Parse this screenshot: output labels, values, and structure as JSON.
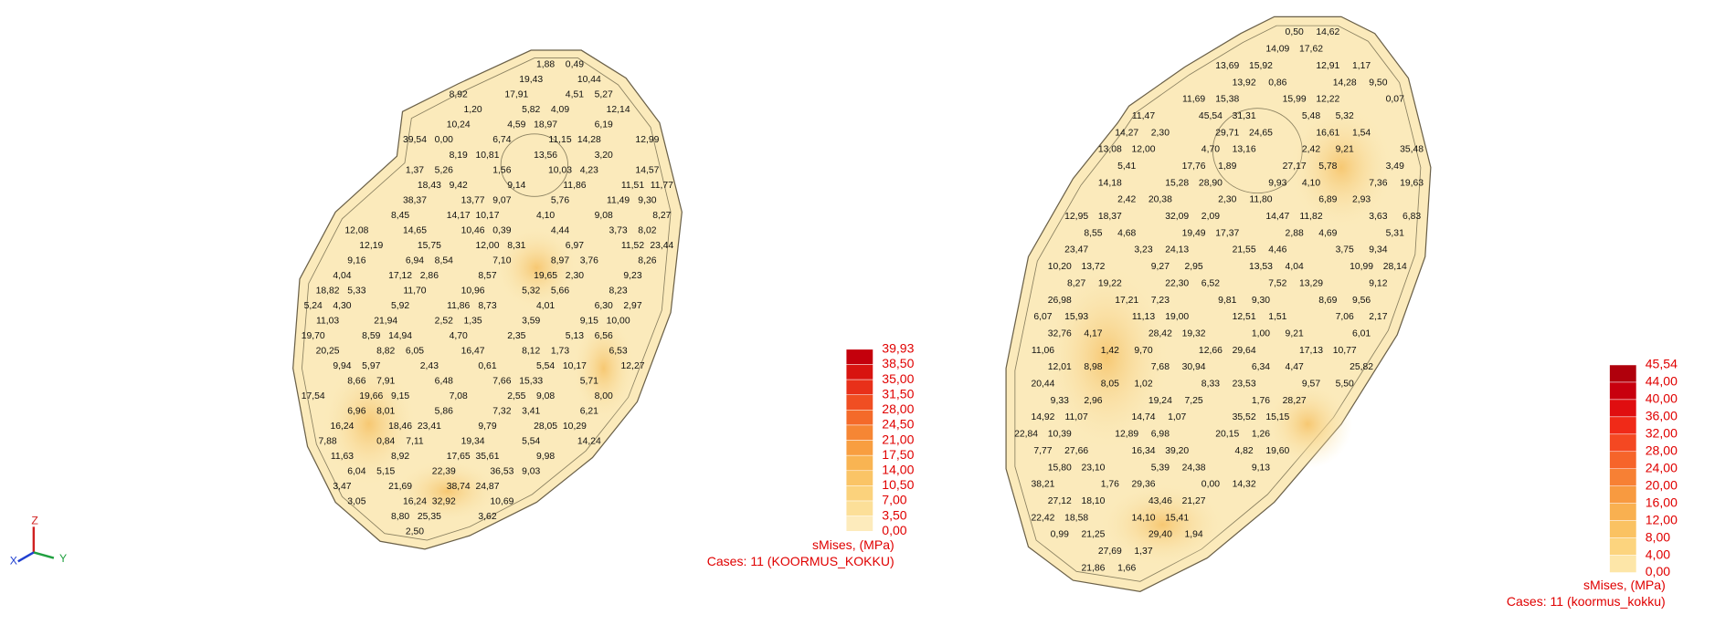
{
  "left_plot": {
    "legend": {
      "ticks": [
        "39,93",
        "38,50",
        "35,00",
        "31,50",
        "28,00",
        "24,50",
        "21,00",
        "17,50",
        "14,00",
        "10,50",
        "7,00",
        "3,50",
        "0,00"
      ],
      "colors": [
        "#c4000c",
        "#d81410",
        "#e8301a",
        "#f04e22",
        "#f46a2a",
        "#f68634",
        "#f89e40",
        "#f9b452",
        "#fac466",
        "#fbd27c",
        "#fcdf98",
        "#fdebbc"
      ],
      "quantity": "sMises, (MPa)",
      "case": "Cases: 11 (KOORMUS_KOKKU)"
    },
    "labels": [
      "1,88",
      "0,49",
      "19,43",
      "10,44",
      "8,92",
      "17,91",
      "4,51",
      "5,27",
      "1,20",
      "5,82",
      "4,09",
      "12,14",
      "10,24",
      "4,59",
      "18,97",
      "6,19",
      "39,54",
      "0,00",
      "6,74",
      "11,15",
      "14,28",
      "12,99",
      "8,19",
      "10,81",
      "13,56",
      "3,20",
      "1,37",
      "5,26",
      "1,56",
      "10,03",
      "4,23",
      "14,57",
      "18,43",
      "9,42",
      "9,14",
      "11,86",
      "11,51",
      "11,77",
      "38,37",
      "13,77",
      "9,07",
      "5,76",
      "11,49",
      "9,30",
      "8,45",
      "14,17",
      "10,17",
      "4,10",
      "9,08",
      "8,27",
      "12,08",
      "14,65",
      "10,46",
      "0,39",
      "4,44",
      "3,73",
      "8,02",
      "12,19",
      "15,75",
      "12,00",
      "8,31",
      "6,97",
      "11,52",
      "23,44",
      "9,16",
      "6,94",
      "8,54",
      "7,10",
      "8,97",
      "3,76",
      "8,26",
      "4,04",
      "17,12",
      "2,86",
      "8,57",
      "19,65",
      "2,30",
      "9,23",
      "18,82",
      "5,33",
      "11,70",
      "10,96",
      "5,32",
      "5,66",
      "8,23",
      "5,24",
      "4,30",
      "5,92",
      "11,86",
      "8,73",
      "4,01",
      "6,30",
      "2,97",
      "11,03",
      "21,94",
      "2,52",
      "1,35",
      "3,59",
      "9,15",
      "10,00",
      "19,70",
      "8,59",
      "14,94",
      "4,70",
      "2,35",
      "5,13",
      "6,56",
      "20,25",
      "8,82",
      "6,05",
      "16,47",
      "8,12",
      "1,73",
      "6,53",
      "9,94",
      "5,97",
      "2,43",
      "0,61",
      "5,54",
      "10,17",
      "12,27",
      "8,66",
      "7,91",
      "6,48",
      "7,66",
      "15,33",
      "5,71",
      "17,54",
      "19,66",
      "9,15",
      "7,08",
      "2,55",
      "9,08",
      "8,00",
      "6,96",
      "8,01",
      "5,86",
      "7,32",
      "3,41",
      "6,21",
      "16,24",
      "18,46",
      "23,41",
      "9,79",
      "28,05",
      "10,29",
      "7,88",
      "0,84",
      "7,11",
      "19,34",
      "5,54",
      "14,24",
      "11,63",
      "8,92",
      "17,65",
      "35,61",
      "9,98",
      "6,04",
      "5,15",
      "22,39",
      "36,53",
      "9,03",
      "3,47",
      "21,69",
      "38,74",
      "24,87",
      "3,05",
      "16,24",
      "32,92",
      "10,69",
      "8,80",
      "25,35",
      "3,62",
      "2,50"
    ]
  },
  "right_plot": {
    "legend": {
      "ticks": [
        "45,54",
        "44,00",
        "40,00",
        "36,00",
        "32,00",
        "28,00",
        "24,00",
        "20,00",
        "16,00",
        "12,00",
        "8,00",
        "4,00",
        "0,00"
      ],
      "colors": [
        "#b0000c",
        "#c8000e",
        "#e00e10",
        "#f02a18",
        "#f44822",
        "#f6642a",
        "#f78034",
        "#f89a40",
        "#f9b050",
        "#fac262",
        "#fcd47e",
        "#fde6a8"
      ],
      "quantity": "sMises, (MPa)",
      "case": "Cases: 11 (koormus_kokku)"
    },
    "labels": [
      "0,50",
      "14,62",
      "14,09",
      "17,62",
      "13,69",
      "15,92",
      "12,91",
      "1,17",
      "13,92",
      "0,86",
      "14,28",
      "9,50",
      "11,69",
      "15,38",
      "15,99",
      "12,22",
      "0,07",
      "11,47",
      "45,54",
      "31,31",
      "5,48",
      "5,32",
      "14,27",
      "2,30",
      "29,71",
      "24,65",
      "16,61",
      "1,54",
      "13,08",
      "12,00",
      "4,70",
      "13,16",
      "2,42",
      "9,21",
      "35,48",
      "5,41",
      "17,76",
      "1,89",
      "27,17",
      "5,78",
      "3,49",
      "14,18",
      "15,28",
      "28,90",
      "9,93",
      "4,10",
      "7,36",
      "19,63",
      "2,42",
      "20,38",
      "2,30",
      "11,80",
      "6,89",
      "2,93",
      "12,95",
      "18,37",
      "32,09",
      "2,09",
      "14,47",
      "11,82",
      "3,63",
      "6,83",
      "8,55",
      "4,68",
      "19,49",
      "17,37",
      "2,88",
      "4,69",
      "5,31",
      "23,47",
      "3,23",
      "24,13",
      "21,55",
      "4,46",
      "3,75",
      "9,34",
      "10,20",
      "13,72",
      "9,27",
      "2,95",
      "13,53",
      "4,04",
      "10,99",
      "28,14",
      "8,27",
      "19,22",
      "22,30",
      "6,52",
      "7,52",
      "13,29",
      "9,12",
      "26,98",
      "17,21",
      "7,23",
      "9,81",
      "9,30",
      "8,69",
      "9,56",
      "6,07",
      "15,93",
      "11,13",
      "19,00",
      "12,51",
      "1,51",
      "7,06",
      "2,17",
      "32,76",
      "4,17",
      "28,42",
      "19,32",
      "1,00",
      "9,21",
      "6,01",
      "11,06",
      "1,42",
      "9,70",
      "12,66",
      "29,64",
      "17,13",
      "10,77",
      "12,01",
      "8,98",
      "7,68",
      "30,94",
      "6,34",
      "4,47",
      "25,82",
      "20,44",
      "8,05",
      "1,02",
      "8,33",
      "23,53",
      "9,57",
      "5,50",
      "9,33",
      "2,96",
      "19,24",
      "7,25",
      "1,76",
      "28,27",
      "14,92",
      "11,07",
      "14,74",
      "1,07",
      "35,52",
      "15,15",
      "22,84",
      "10,39",
      "12,89",
      "6,98",
      "20,15",
      "1,26",
      "7,77",
      "27,66",
      "16,34",
      "39,20",
      "4,82",
      "19,60",
      "15,80",
      "23,10",
      "5,39",
      "24,38",
      "9,13",
      "38,21",
      "1,76",
      "29,36",
      "0,00",
      "14,32",
      "27,12",
      "18,10",
      "43,46",
      "21,27",
      "22,42",
      "18,58",
      "14,10",
      "15,41",
      "0,99",
      "21,25",
      "29,40",
      "1,94",
      "27,69",
      "1,37",
      "21,86",
      "1,66"
    ]
  },
  "axes_triad": {
    "z": "Z",
    "y": "Y",
    "x": "X"
  }
}
